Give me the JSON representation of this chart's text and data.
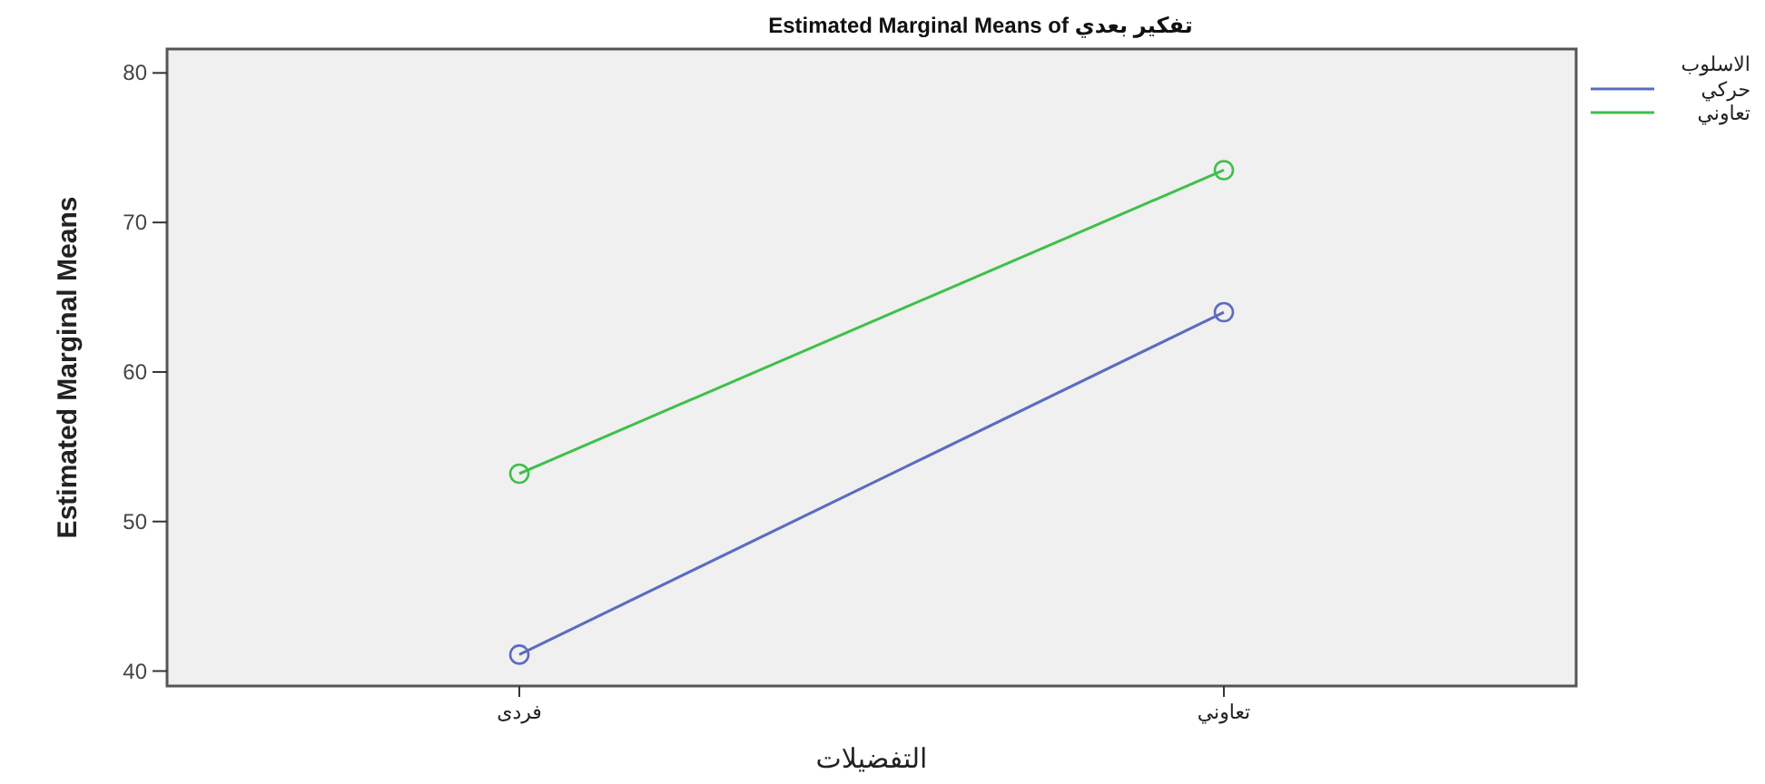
{
  "chart_data": {
    "type": "line",
    "title": "Estimated Marginal Means of تفكير بعدي",
    "xlabel": "التفضيلات",
    "ylabel": "Estimated Marginal Means",
    "legend_title": "الاسلوب",
    "categories": [
      "فردى",
      "تعاوني"
    ],
    "series": [
      {
        "name": "حركي",
        "color": "#5b6cc0",
        "values": [
          41.1,
          64.0
        ]
      },
      {
        "name": "تعاوني",
        "color": "#3fbf4a",
        "values": [
          53.2,
          73.5
        ]
      }
    ],
    "ylim": [
      39,
      81.6
    ],
    "yticks": [
      40,
      50,
      60,
      70,
      80
    ],
    "grid": false,
    "legend": "top right",
    "marker": "circle",
    "line_style": "solid"
  }
}
